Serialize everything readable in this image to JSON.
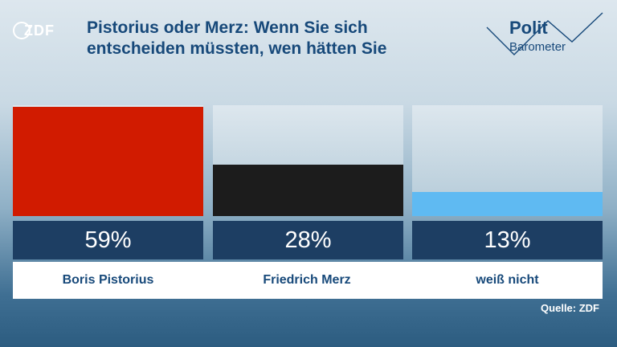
{
  "logo": {
    "text": "ZDF"
  },
  "brand": {
    "line1": "Polit",
    "line2": "Barometer"
  },
  "source": "Quelle: ZDF",
  "colors": {
    "title": "#17497a",
    "value_box": "#1d3e63"
  },
  "chart_data": {
    "type": "bar",
    "title": "Pistorius oder Merz: Wenn Sie sich entscheiden müssten, wen hätten Sie",
    "categories": [
      "Boris Pistorius",
      "Friedrich Merz",
      "weiß nicht"
    ],
    "values": [
      59,
      28,
      13
    ],
    "value_labels": [
      "59%",
      "28%",
      "13%"
    ],
    "colors": [
      "#d11b00",
      "#1c1c1c",
      "#5fbaf2"
    ],
    "ylim": [
      0,
      60
    ]
  }
}
